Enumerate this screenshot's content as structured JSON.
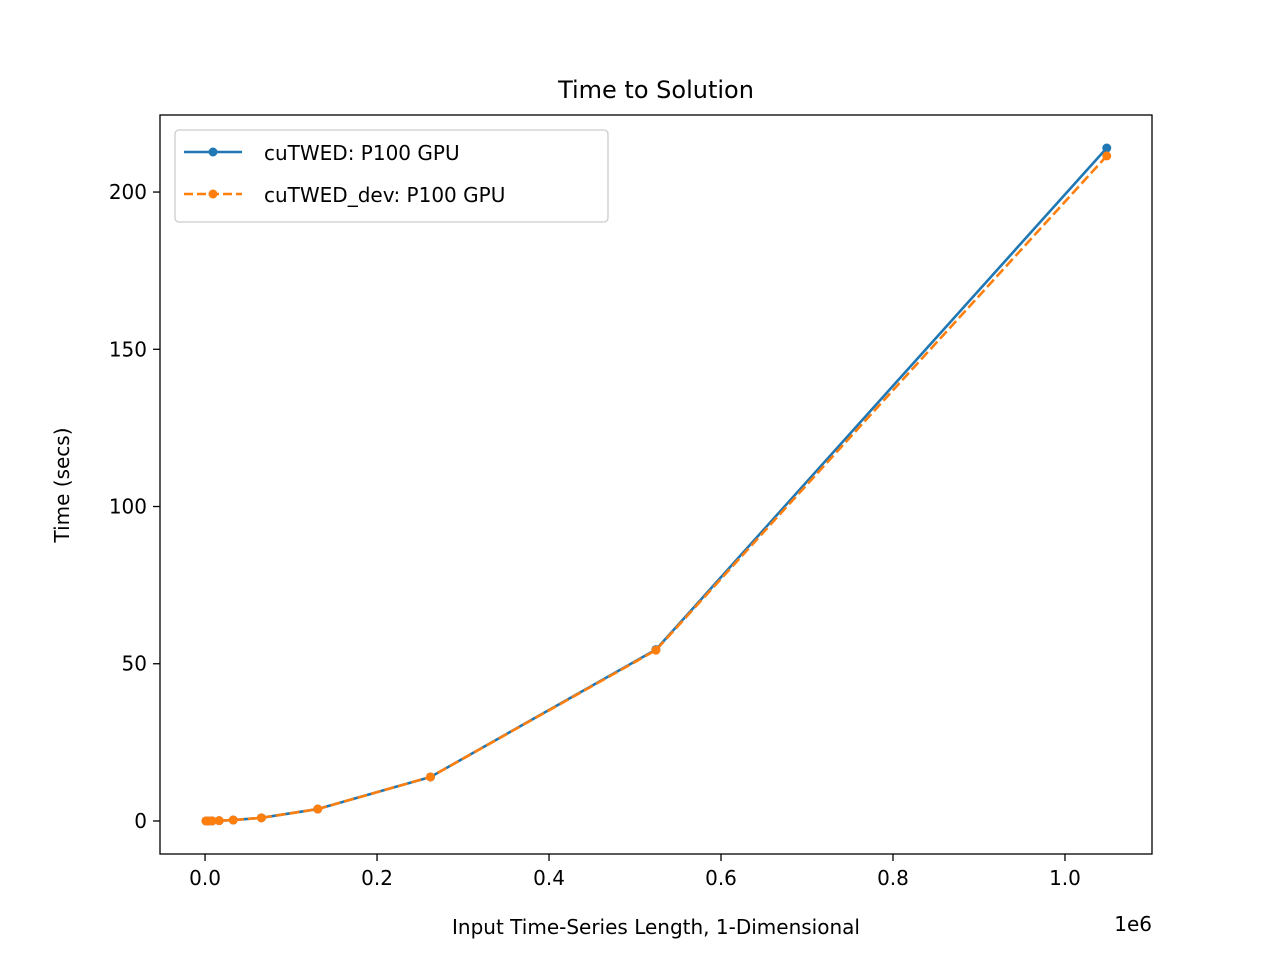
{
  "chart_data": {
    "type": "line",
    "title": "Time to Solution",
    "xlabel": "Input Time-Series Length, 1-Dimensional",
    "ylabel": "Time (secs)",
    "x_offset_label": "1e6",
    "xlim": [
      -0.0524,
      1.1012
    ],
    "ylim": [
      -10.5,
      224.5
    ],
    "x_ticks": [
      0.0,
      0.2,
      0.4,
      0.6,
      0.8,
      1.0
    ],
    "x_tick_labels": [
      "0.0",
      "0.2",
      "0.4",
      "0.6",
      "0.8",
      "1.0"
    ],
    "y_ticks": [
      0,
      50,
      100,
      150,
      200
    ],
    "y_tick_labels": [
      "0",
      "50",
      "100",
      "150",
      "200"
    ],
    "grid": false,
    "legend_position": "top-left",
    "series": [
      {
        "name": "cuTWED: P100 GPU",
        "color": "#1f77b4",
        "line_style": "solid",
        "marker": "circle",
        "x": [
          0.001024,
          0.002048,
          0.004096,
          0.008192,
          0.016384,
          0.032768,
          0.065536,
          0.131072,
          0.262144,
          0.524288,
          1.048576
        ],
        "y": [
          0.0,
          0.0,
          0.01,
          0.03,
          0.1,
          0.3,
          1.0,
          3.8,
          14.0,
          54.5,
          214.0
        ]
      },
      {
        "name": "cuTWED_dev: P100 GPU",
        "color": "#ff7f0e",
        "line_style": "dashed",
        "marker": "circle",
        "x": [
          0.001024,
          0.002048,
          0.004096,
          0.008192,
          0.016384,
          0.032768,
          0.065536,
          0.131072,
          0.262144,
          0.524288,
          1.048576
        ],
        "y": [
          0.0,
          0.0,
          0.01,
          0.03,
          0.1,
          0.3,
          1.0,
          3.8,
          14.0,
          54.3,
          211.5
        ]
      }
    ]
  }
}
